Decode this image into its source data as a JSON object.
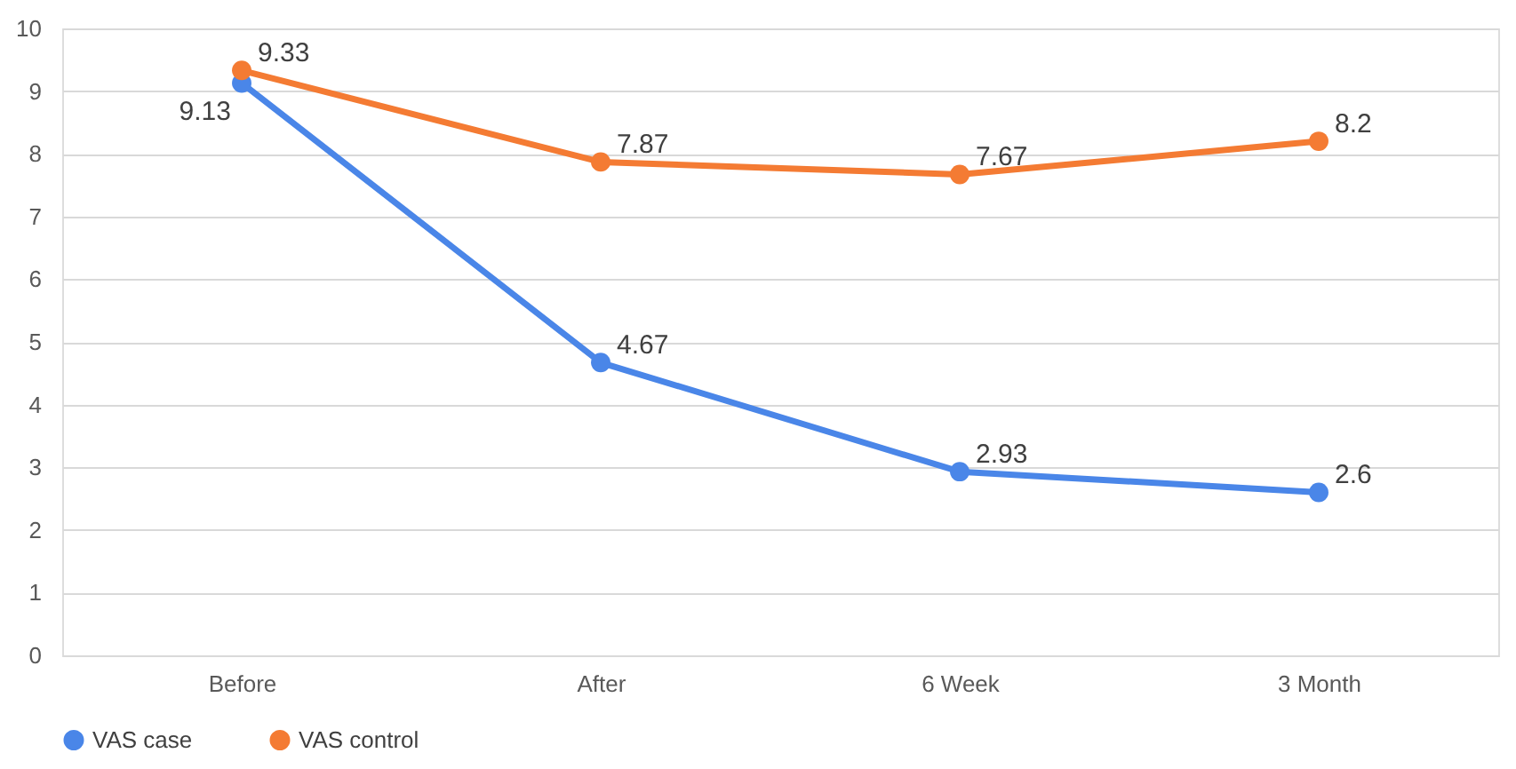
{
  "chart_data": {
    "type": "line",
    "categories": [
      "Before",
      "After",
      "6 Week",
      "3 Month"
    ],
    "series": [
      {
        "name": "VAS case",
        "color": "#4a86e8",
        "values": [
          9.13,
          4.67,
          2.93,
          2.6
        ]
      },
      {
        "name": "VAS control",
        "color": "#f47b33",
        "values": [
          9.33,
          7.87,
          7.67,
          8.2
        ]
      }
    ],
    "ylim": [
      0,
      10
    ],
    "yticks": [
      0,
      1,
      2,
      3,
      4,
      5,
      6,
      7,
      8,
      9,
      10
    ],
    "grid": "y",
    "legend": "bottom",
    "marker": "circle",
    "line_style": "solid",
    "data_labels": true
  }
}
